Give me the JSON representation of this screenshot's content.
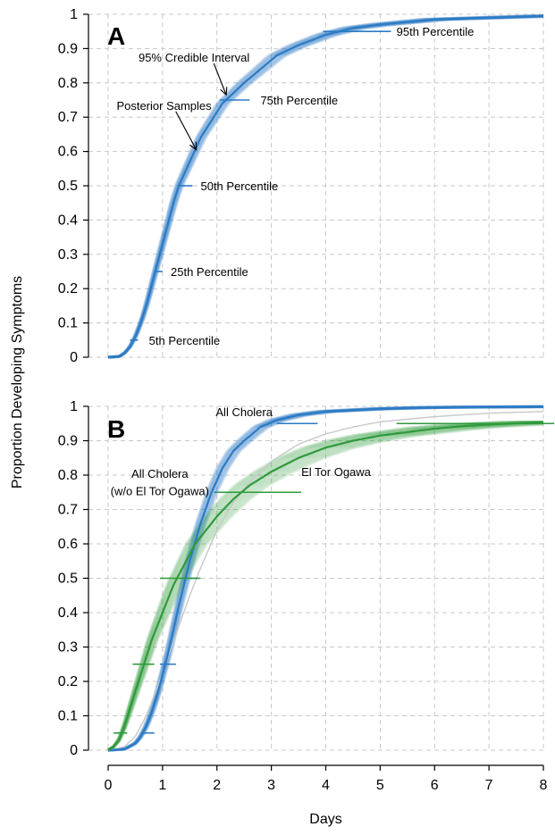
{
  "chart_data": [
    {
      "panel": "A",
      "type": "line",
      "xlim": [
        0,
        8
      ],
      "ylim": [
        0,
        1
      ],
      "x_ticks": [
        0,
        1,
        2,
        3,
        4,
        5,
        6,
        7,
        8
      ],
      "y_ticks": [
        0,
        0.1,
        0.2,
        0.3,
        0.4,
        0.5,
        0.6,
        0.7,
        0.8,
        0.9,
        1
      ],
      "y_tick_labels": [
        "0",
        "0.1",
        "0.2",
        "0.3",
        "0.4",
        "0.5",
        "0.6",
        "0.7",
        "0.8",
        "0.9",
        "1"
      ],
      "grid": true,
      "series": [
        {
          "color": "#2b7bc4",
          "band": "95% credible interval",
          "x": [
            0,
            0.2,
            0.3,
            0.4,
            0.5,
            0.6,
            0.7,
            0.8,
            0.9,
            1.0,
            1.1,
            1.2,
            1.3,
            1.5,
            1.7,
            1.9,
            2.1,
            2.3,
            2.5,
            2.8,
            3.1,
            3.5,
            4.0,
            4.5,
            5.0,
            6.0,
            7.0,
            8.0
          ],
          "y": [
            0,
            0.002,
            0.012,
            0.03,
            0.06,
            0.1,
            0.15,
            0.21,
            0.27,
            0.33,
            0.39,
            0.45,
            0.5,
            0.57,
            0.64,
            0.69,
            0.74,
            0.77,
            0.8,
            0.84,
            0.88,
            0.91,
            0.94,
            0.96,
            0.97,
            0.985,
            0.99,
            0.995
          ],
          "percentiles": [
            {
              "label": "5th Percentile",
              "p": 0.05,
              "low": 0.4,
              "high": 0.55
            },
            {
              "label": "25th Percentile",
              "p": 0.25,
              "low": 0.85,
              "high": 1.0
            },
            {
              "label": "50th Percentile",
              "p": 0.5,
              "low": 1.3,
              "high": 1.55
            },
            {
              "label": "75th Percentile",
              "p": 0.75,
              "low": 2.05,
              "high": 2.6
            },
            {
              "label": "95th Percentile",
              "p": 0.95,
              "low": 3.95,
              "high": 5.2
            }
          ]
        }
      ],
      "annotations": [
        {
          "text": "95% Credible Interval",
          "x": 2.6,
          "y": 0.875,
          "anchor": "end",
          "arrow_to": [
            2.17,
            0.765
          ]
        },
        {
          "text": "Posterior Samples",
          "x": 1.9,
          "y": 0.735,
          "anchor": "end",
          "arrow_to": [
            1.62,
            0.605
          ]
        },
        {
          "text": "50th Percentile",
          "x": 1.7,
          "y": 0.5,
          "anchor": "start"
        },
        {
          "text": "25th Percentile",
          "x": 1.15,
          "y": 0.25,
          "anchor": "start"
        },
        {
          "text": "5th Percentile",
          "x": 0.75,
          "y": 0.05,
          "anchor": "start"
        },
        {
          "text": "75th Percentile",
          "x": 2.8,
          "y": 0.75,
          "anchor": "start"
        },
        {
          "text": "95th Percentile",
          "x": 5.3,
          "y": 0.95,
          "anchor": "start"
        }
      ],
      "panel_label": "A"
    },
    {
      "panel": "B",
      "type": "line",
      "xlim": [
        0,
        8
      ],
      "ylim": [
        0,
        1
      ],
      "x_ticks": [
        0,
        1,
        2,
        3,
        4,
        5,
        6,
        7,
        8
      ],
      "x_tick_labels": [
        "0",
        "1",
        "2",
        "3",
        "4",
        "5",
        "6",
        "7",
        "8"
      ],
      "y_ticks": [
        0,
        0.1,
        0.2,
        0.3,
        0.4,
        0.5,
        0.6,
        0.7,
        0.8,
        0.9,
        1
      ],
      "y_tick_labels": [
        "0",
        "0.1",
        "0.2",
        "0.3",
        "0.4",
        "0.5",
        "0.6",
        "0.7",
        "0.8",
        "0.9",
        "1"
      ],
      "xlabel": "Days",
      "grid": true,
      "series": [
        {
          "name": "All Cholera",
          "color": "#c8c8c8",
          "x": [
            0,
            0.3,
            0.5,
            0.7,
            0.9,
            1.1,
            1.3,
            1.5,
            1.7,
            2.0,
            2.3,
            2.6,
            3.0,
            3.5,
            4.0,
            4.5,
            5.0,
            6.0,
            7.0,
            8.0
          ],
          "y": [
            0,
            0.01,
            0.04,
            0.1,
            0.18,
            0.27,
            0.36,
            0.45,
            0.53,
            0.64,
            0.72,
            0.78,
            0.84,
            0.89,
            0.92,
            0.94,
            0.955,
            0.97,
            0.98,
            0.985
          ]
        },
        {
          "name": "All Cholera (w/o El Tor Ogawa)",
          "color": "#2b7bc4",
          "x": [
            0,
            0.3,
            0.5,
            0.6,
            0.7,
            0.8,
            0.9,
            1.0,
            1.1,
            1.2,
            1.3,
            1.5,
            1.7,
            1.9,
            2.1,
            2.3,
            2.5,
            2.8,
            3.1,
            3.5,
            4.0,
            5.0,
            6.0,
            7.0,
            8.0
          ],
          "y": [
            0,
            0.003,
            0.02,
            0.04,
            0.07,
            0.11,
            0.16,
            0.22,
            0.28,
            0.35,
            0.42,
            0.55,
            0.66,
            0.75,
            0.82,
            0.87,
            0.9,
            0.94,
            0.96,
            0.975,
            0.985,
            0.993,
            0.997,
            0.998,
            0.999
          ],
          "percentiles": [
            {
              "p": 0.05,
              "low": 0.6,
              "high": 0.85
            },
            {
              "p": 0.25,
              "low": 0.95,
              "high": 1.25
            },
            {
              "p": 0.5,
              "low": 1.4,
              "high": 1.65
            },
            {
              "p": 0.75,
              "low": 1.95,
              "high": 2.25
            },
            {
              "p": 0.95,
              "low": 3.1,
              "high": 3.85
            }
          ]
        },
        {
          "name": "El Tor Ogawa",
          "color": "#2e9a3c",
          "x": [
            0,
            0.1,
            0.2,
            0.3,
            0.4,
            0.5,
            0.6,
            0.7,
            0.8,
            1.0,
            1.2,
            1.4,
            1.6,
            1.8,
            2.0,
            2.3,
            2.6,
            3.0,
            3.5,
            4.0,
            4.5,
            5.0,
            5.5,
            6.0,
            6.5,
            7.0,
            7.5,
            8.0
          ],
          "y": [
            0,
            0.01,
            0.03,
            0.07,
            0.12,
            0.17,
            0.22,
            0.27,
            0.32,
            0.4,
            0.48,
            0.54,
            0.6,
            0.64,
            0.68,
            0.73,
            0.77,
            0.81,
            0.85,
            0.88,
            0.9,
            0.915,
            0.925,
            0.935,
            0.942,
            0.947,
            0.951,
            0.954
          ],
          "percentiles": [
            {
              "p": 0.05,
              "low": 0.1,
              "high": 0.35
            },
            {
              "p": 0.25,
              "low": 0.45,
              "high": 0.85
            },
            {
              "p": 0.5,
              "low": 0.95,
              "high": 1.7
            },
            {
              "p": 0.75,
              "low": 2.0,
              "high": 3.55
            },
            {
              "p": 0.95,
              "low": 5.3,
              "high": 8.2
            }
          ]
        }
      ],
      "annotations": [
        {
          "text": "All Cholera",
          "x": 2.5,
          "y": 0.985,
          "anchor": "middle",
          "color": "#c8c8c8"
        },
        {
          "text": "All Cholera",
          "x": 0.95,
          "y": 0.805,
          "anchor": "middle",
          "color": "#2b7bc4"
        },
        {
          "text": "(w/o El Tor Ogawa)",
          "x": 0.95,
          "y": 0.755,
          "anchor": "middle",
          "color": "#2b7bc4"
        },
        {
          "text": "El Tor Ogawa",
          "x": 3.55,
          "y": 0.81,
          "anchor": "start",
          "color": "#2e9a3c"
        }
      ],
      "panel_label": "B"
    }
  ],
  "ylabel": "Proportion Developing Symptoms"
}
